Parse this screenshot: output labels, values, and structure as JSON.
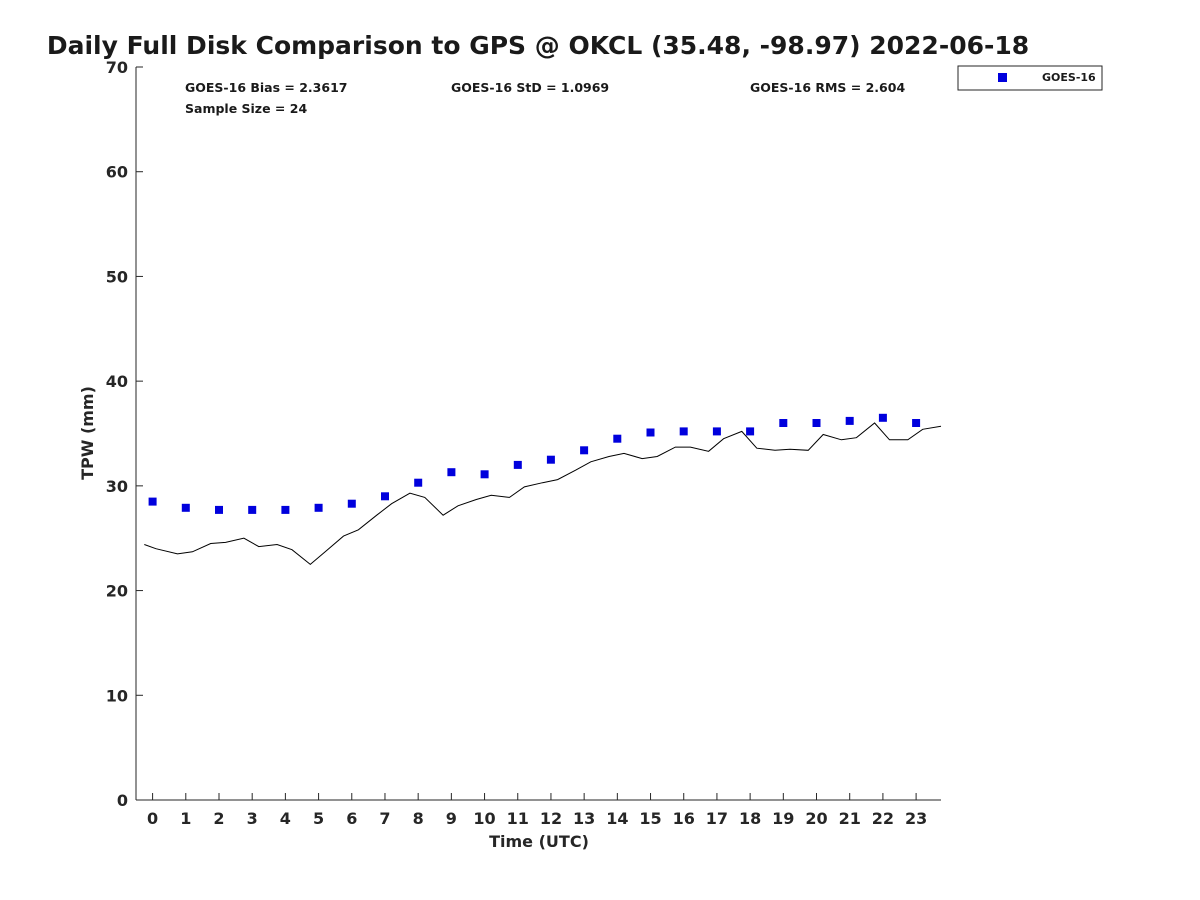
{
  "colors": {
    "goes": "#0000dd",
    "gps_line": "#000000",
    "axis": "#262626"
  },
  "chart_data": {
    "type": "scatter",
    "title": "Daily Full Disk Comparison to GPS @ OKCL (35.48, -98.97) 2022-06-18",
    "xlabel": "Time (UTC)",
    "ylabel": "TPW (mm)",
    "xlim": [
      -0.5,
      23.75
    ],
    "ylim": [
      0,
      70
    ],
    "xticks": [
      0,
      1,
      2,
      3,
      4,
      5,
      6,
      7,
      8,
      9,
      10,
      11,
      12,
      13,
      14,
      15,
      16,
      17,
      18,
      19,
      20,
      21,
      22,
      23
    ],
    "yticks": [
      0,
      10,
      20,
      30,
      40,
      50,
      60,
      70
    ],
    "stats": {
      "bias": "GOES-16 Bias = 2.3617",
      "std": "GOES-16 StD = 1.0969",
      "rms": "GOES-16 RMS = 2.604",
      "sample": "Sample Size = 24"
    },
    "legend": {
      "position": "top-right-outside",
      "entries": [
        "GOES-16"
      ]
    },
    "series": [
      {
        "name": "GOES-16",
        "style": "markers",
        "x": [
          0,
          1,
          2,
          3,
          4,
          5,
          6,
          7,
          8,
          9,
          10,
          11,
          12,
          13,
          14,
          15,
          16,
          17,
          18,
          19,
          20,
          21,
          22,
          23
        ],
        "y": [
          28.5,
          27.9,
          27.7,
          27.7,
          27.7,
          27.9,
          28.3,
          29.0,
          30.3,
          31.3,
          31.1,
          32.0,
          32.5,
          33.4,
          34.5,
          35.1,
          35.2,
          35.2,
          35.2,
          36.0,
          36.0,
          36.2,
          36.5,
          36.0
        ]
      },
      {
        "name": "GPS",
        "style": "line",
        "x": [
          -0.25,
          0.1,
          0.75,
          1.2,
          1.75,
          2.2,
          2.75,
          3.2,
          3.75,
          4.2,
          4.75,
          5.2,
          5.75,
          6.2,
          6.75,
          7.2,
          7.75,
          8.2,
          8.75,
          9.2,
          9.75,
          10.2,
          10.75,
          11.2,
          11.75,
          12.2,
          12.75,
          13.2,
          13.75,
          14.2,
          14.75,
          15.2,
          15.75,
          16.2,
          16.75,
          17.2,
          17.75,
          18.2,
          18.75,
          19.2,
          19.75,
          20.2,
          20.75,
          21.2,
          21.75,
          22.2,
          22.75,
          23.2,
          23.75
        ],
        "y": [
          24.4,
          24.0,
          23.5,
          23.7,
          24.5,
          24.6,
          25.0,
          24.2,
          24.4,
          23.9,
          22.5,
          23.7,
          25.2,
          25.8,
          27.2,
          28.3,
          29.3,
          28.9,
          27.2,
          28.1,
          28.7,
          29.1,
          28.9,
          29.9,
          30.3,
          30.6,
          31.5,
          32.3,
          32.8,
          33.1,
          32.6,
          32.8,
          33.7,
          33.7,
          33.3,
          34.5,
          35.2,
          33.6,
          33.4,
          33.5,
          33.4,
          34.9,
          34.4,
          34.6,
          36.0,
          34.4,
          34.4,
          35.4,
          35.7
        ]
      }
    ]
  }
}
